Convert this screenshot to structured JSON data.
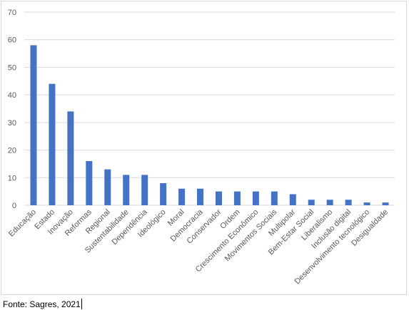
{
  "source_note": "Fonte: Sagres, 2021",
  "colors": {
    "bar": "#4472C4",
    "grid": "#d9d9d9",
    "axis_text": "#595959"
  },
  "chart_data": {
    "type": "bar",
    "title": "",
    "xlabel": "",
    "ylabel": "",
    "ylim": [
      0,
      70
    ],
    "yticks": [
      0,
      10,
      20,
      30,
      40,
      50,
      60,
      70
    ],
    "grid": true,
    "legend": "none",
    "categories": [
      "Educação",
      "Estado",
      "Inovação",
      "Reformas",
      "Regional",
      "Sustentabilidade",
      "Dependência",
      "Ideológico",
      "Moral",
      "Democracia",
      "Conservador",
      "Ordem",
      "Crescimento Econômico",
      "Movimentos Sociais",
      "Multipolar",
      "Bem-Estar Social",
      "Liberalismo",
      "Inclusão digital",
      "Desenvolvimento tecnológico",
      "Desigualdade"
    ],
    "values": [
      58,
      44,
      34,
      16,
      13,
      11,
      11,
      8,
      6,
      6,
      5,
      5,
      5,
      5,
      4,
      2,
      2,
      2,
      1,
      1
    ]
  }
}
